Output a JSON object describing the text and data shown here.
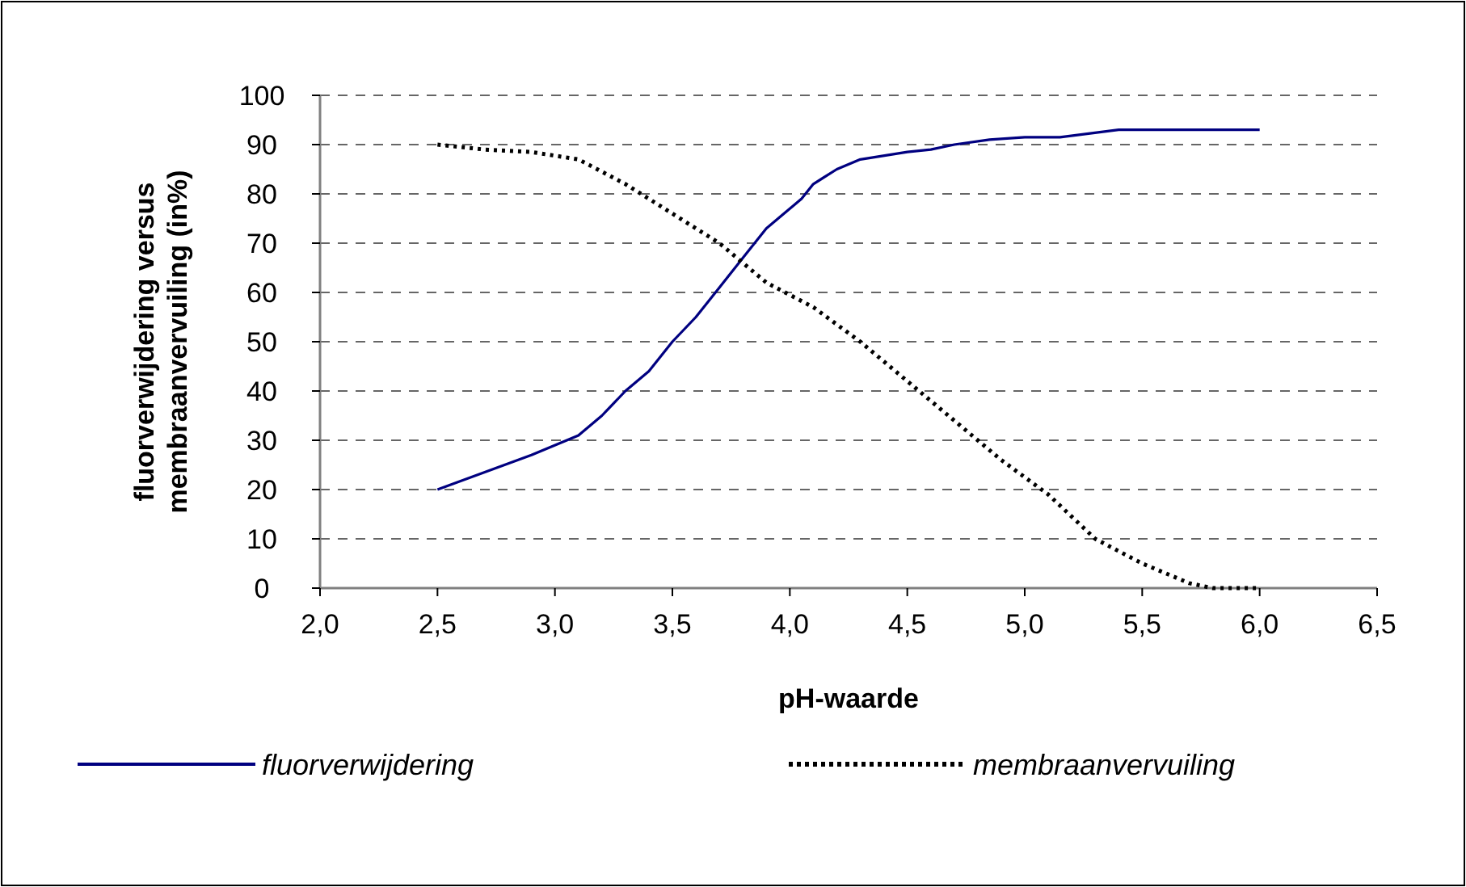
{
  "chart_data": {
    "type": "line",
    "xlabel": "pH-waarde",
    "ylabel": "fluorverwijdering versus membraanvervuiling (in%)",
    "xlim": [
      2,
      6.5
    ],
    "xticks": [
      {
        "value": 2,
        "label": "2,0"
      },
      {
        "value": 2.5,
        "label": "2,5"
      },
      {
        "value": 3,
        "label": "3,0"
      },
      {
        "value": 3.5,
        "label": "3,5"
      },
      {
        "value": 4,
        "label": "4,0"
      },
      {
        "value": 4.5,
        "label": "4,5"
      },
      {
        "value": 5,
        "label": "5,0"
      },
      {
        "value": 5.5,
        "label": "5,5"
      },
      {
        "value": 6,
        "label": "6,0"
      },
      {
        "value": 6.5,
        "label": "6,5"
      }
    ],
    "ylim": [
      0,
      100
    ],
    "yticks": [
      0,
      10,
      20,
      30,
      40,
      50,
      60,
      70,
      80,
      90,
      100
    ],
    "grid": "y",
    "legend": "bottom",
    "series": [
      {
        "name": "fluorverwijdering",
        "color": "#000080",
        "line_style": "solid",
        "x": [
          2.5,
          2.9,
          3.1,
          3.2,
          3.3,
          3.4,
          3.5,
          3.6,
          3.7,
          3.8,
          3.9,
          4.0,
          4.05,
          4.1,
          4.2,
          4.3,
          4.5,
          4.6,
          4.7,
          4.85,
          5.0,
          5.15,
          5.4,
          6.0
        ],
        "values": [
          20,
          27,
          31,
          35,
          40,
          44,
          50,
          55,
          61,
          67,
          73,
          77,
          79,
          82,
          85,
          87,
          88.5,
          89,
          90,
          91,
          91.5,
          91.5,
          93,
          93
        ]
      },
      {
        "name": "membraanvervuiling",
        "color": "#000000",
        "line_style": "dotted",
        "x": [
          2.5,
          2.7,
          2.9,
          3.1,
          3.3,
          3.5,
          3.7,
          3.9,
          4.1,
          4.3,
          4.5,
          4.7,
          4.9,
          5.1,
          5.3,
          5.5,
          5.7,
          5.8,
          6.0
        ],
        "values": [
          90,
          89,
          88.5,
          87,
          82,
          76,
          70,
          62,
          57,
          50,
          42,
          34,
          26,
          19,
          10,
          5,
          1,
          0,
          0
        ]
      }
    ]
  }
}
